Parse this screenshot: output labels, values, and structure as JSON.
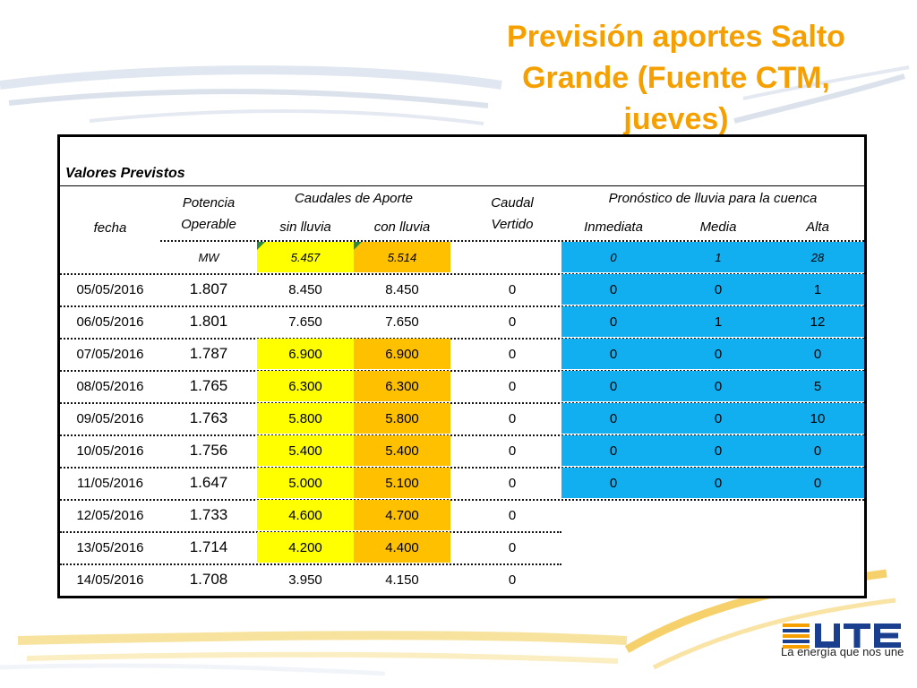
{
  "title": {
    "line1": "Previsión aportes Salto",
    "line2": "Grande (Fuente CTM,",
    "line3": "jueves)"
  },
  "table": {
    "section_title": "Valores Previstos",
    "headers": {
      "fecha": "fecha",
      "potencia_line1": "Potencia",
      "potencia_line2": "Operable",
      "caudales_group": "Caudales de Aporte",
      "sin_lluvia": "sin lluvia",
      "con_lluvia": "con lluvia",
      "caudal_line1": "Caudal",
      "caudal_line2": "Vertido",
      "pronostico_group": "Pronóstico de lluvia para la cuenca",
      "inmediata": "Inmediata",
      "media": "Media",
      "alta": "Alta"
    },
    "summary": {
      "unit": "MW",
      "sin_lluvia": "5.457",
      "con_lluvia": "5.514",
      "inmediata": "0",
      "media": "1",
      "alta": "28"
    },
    "rows": [
      {
        "fecha": "05/05/2016",
        "potencia": "1.807",
        "sin": "8.450",
        "con": "8.450",
        "vertido": "0",
        "inm": "0",
        "med": "0",
        "alta": "1"
      },
      {
        "fecha": "06/05/2016",
        "potencia": "1.801",
        "sin": "7.650",
        "con": "7.650",
        "vertido": "0",
        "inm": "0",
        "med": "1",
        "alta": "12"
      },
      {
        "fecha": "07/05/2016",
        "potencia": "1.787",
        "sin": "6.900",
        "con": "6.900",
        "vertido": "0",
        "inm": "0",
        "med": "0",
        "alta": "0"
      },
      {
        "fecha": "08/05/2016",
        "potencia": "1.765",
        "sin": "6.300",
        "con": "6.300",
        "vertido": "0",
        "inm": "0",
        "med": "0",
        "alta": "5"
      },
      {
        "fecha": "09/05/2016",
        "potencia": "1.763",
        "sin": "5.800",
        "con": "5.800",
        "vertido": "0",
        "inm": "0",
        "med": "0",
        "alta": "10"
      },
      {
        "fecha": "10/05/2016",
        "potencia": "1.756",
        "sin": "5.400",
        "con": "5.400",
        "vertido": "0",
        "inm": "0",
        "med": "0",
        "alta": "0"
      },
      {
        "fecha": "11/05/2016",
        "potencia": "1.647",
        "sin": "5.000",
        "con": "5.100",
        "vertido": "0",
        "inm": "0",
        "med": "0",
        "alta": "0"
      },
      {
        "fecha": "12/05/2016",
        "potencia": "1.733",
        "sin": "4.600",
        "con": "4.700",
        "vertido": "0"
      },
      {
        "fecha": "13/05/2016",
        "potencia": "1.714",
        "sin": "4.200",
        "con": "4.400",
        "vertido": "0"
      },
      {
        "fecha": "14/05/2016",
        "potencia": "1.708",
        "sin": "3.950",
        "con": "4.150",
        "vertido": "0"
      }
    ]
  },
  "footer": {
    "logo_text": "UTE",
    "slogan": "La energía que nos une"
  },
  "colors": {
    "title": "#f5a000",
    "sin_lluvia_fill": "#ffff00",
    "con_lluvia_fill": "#ffc000",
    "pronostico_fill": "#11aef0"
  }
}
